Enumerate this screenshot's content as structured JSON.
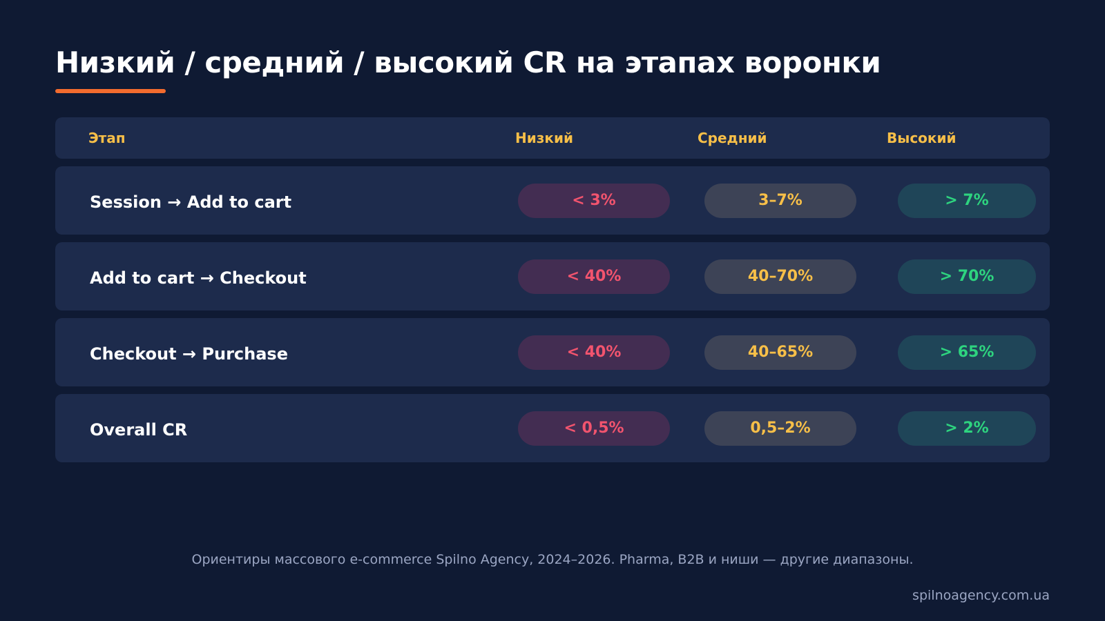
{
  "title": "Низкий / средний / высокий CR на этапах воронки",
  "colors": {
    "background": "#0f1a33",
    "row_background": "#1d2b4c",
    "accent_underline": "#f26b2e",
    "header_text": "#f7bf48",
    "low": "#f2546e",
    "mid": "#f7bf48",
    "high": "#2ed47f"
  },
  "table": {
    "headers": {
      "stage": "Этап",
      "low": "Низкий",
      "mid": "Средний",
      "high": "Высокий"
    },
    "rows": [
      {
        "stage": "Session → Add to cart",
        "low": "< 3%",
        "mid": "3–7%",
        "high": "> 7%"
      },
      {
        "stage": "Add to cart → Checkout",
        "low": "< 40%",
        "mid": "40–70%",
        "high": "> 70%"
      },
      {
        "stage": "Checkout → Purchase",
        "low": "< 40%",
        "mid": "40–65%",
        "high": "> 65%"
      },
      {
        "stage": "Overall CR",
        "low": "< 0,5%",
        "mid": "0,5–2%",
        "high": "> 2%"
      }
    ]
  },
  "footnote": "Ориентиры массового e-commerce Spilno Agency, 2024–2026. Pharma, B2B и ниши — другие диапазоны.",
  "site": "spilnoagency.com.ua"
}
